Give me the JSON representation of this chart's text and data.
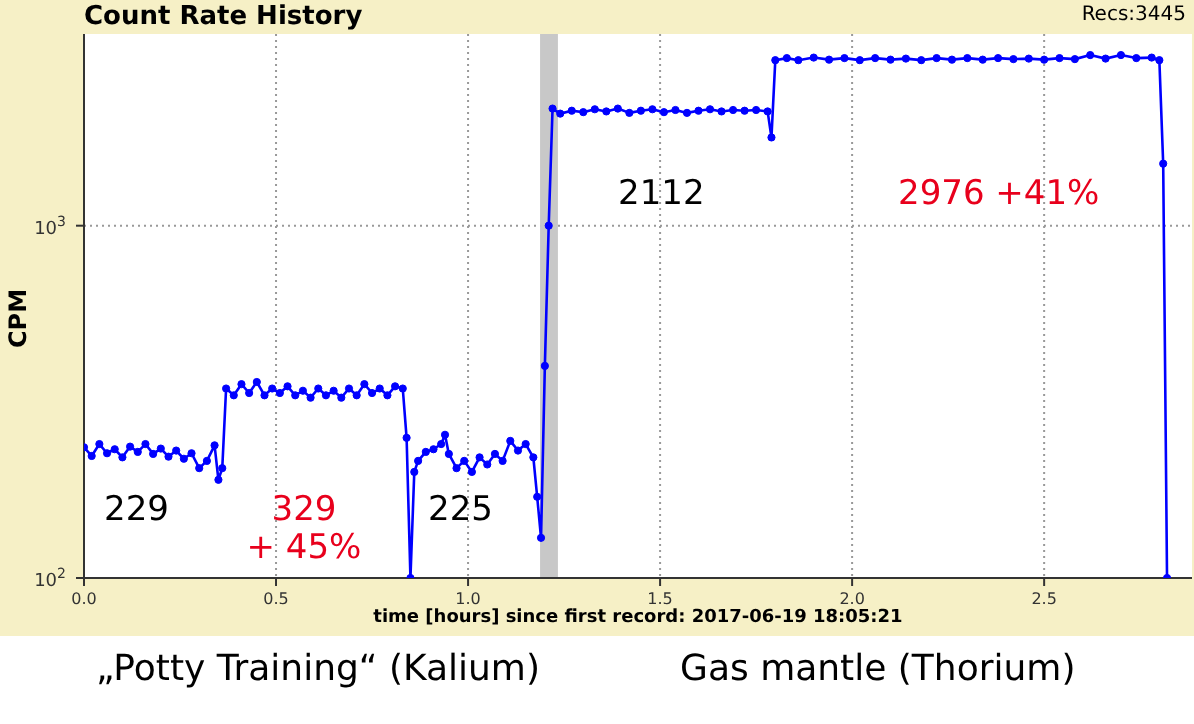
{
  "chart_data": {
    "type": "line",
    "title": "Count Rate History",
    "xlabel": "time [hours] since first record: 2017-06-19 18:05:21",
    "ylabel": "CPM",
    "annotations": [
      "Recs:3445",
      "229",
      "329\n+ 45%",
      "225",
      "2112",
      "2976 +41%",
      "„Potty Training“ (Kalium)",
      "Gas mantle (Thorium)"
    ],
    "log": "y",
    "grid": true,
    "marker": "circle",
    "line_style": "solid",
    "xlim": [
      0,
      2.885
    ],
    "xticks": [
      {
        "value": 0,
        "label": "0.0"
      },
      0.5,
      {
        "value": 1,
        "label": "1.0"
      },
      1.5,
      {
        "value": 2,
        "label": "2.0"
      },
      2.5
    ],
    "ylim": [
      100,
      3500
    ],
    "yticks": [
      {
        "value": 100,
        "label": "10$^{2}$"
      },
      {
        "value": 1000,
        "label": "10$^{3}$"
      }
    ],
    "bands": [
      {
        "axis": "x",
        "from": 1.1875,
        "to": 1.234,
        "color": "#c8c8c8"
      }
    ],
    "series": [
      {
        "color": "#0000ff",
        "x": [
          0,
          0.02,
          0.04,
          0.06,
          0.08,
          0.1,
          0.12,
          0.14,
          0.16,
          0.18,
          0.2,
          0.22,
          0.24,
          0.26,
          0.28,
          0.3,
          0.32,
          0.34,
          0.35,
          0.36,
          0.37,
          0.39,
          0.41,
          0.43,
          0.45,
          0.47,
          0.49,
          0.51,
          0.53,
          0.55,
          0.57,
          0.59,
          0.61,
          0.63,
          0.65,
          0.67,
          0.69,
          0.71,
          0.73,
          0.75,
          0.77,
          0.79,
          0.81,
          0.83,
          0.84,
          0.85,
          0.86,
          0.87,
          0.89,
          0.91,
          0.93,
          0.94,
          0.95,
          0.97,
          0.99,
          1.01,
          1.03,
          1.05,
          1.07,
          1.09,
          1.11,
          1.13,
          1.15,
          1.17,
          1.18,
          1.19,
          1.2,
          1.21,
          1.22,
          1.24,
          1.27,
          1.3,
          1.33,
          1.36,
          1.39,
          1.42,
          1.45,
          1.48,
          1.51,
          1.54,
          1.57,
          1.6,
          1.63,
          1.66,
          1.69,
          1.72,
          1.75,
          1.78,
          1.79,
          1.8,
          1.83,
          1.86,
          1.9,
          1.94,
          1.98,
          2.02,
          2.06,
          2.1,
          2.14,
          2.18,
          2.22,
          2.26,
          2.3,
          2.34,
          2.38,
          2.42,
          2.46,
          2.5,
          2.54,
          2.58,
          2.62,
          2.66,
          2.7,
          2.74,
          2.78,
          2.8,
          2.81,
          2.82
        ],
        "values": [
          235,
          222,
          240,
          226,
          232,
          220,
          236,
          228,
          240,
          225,
          233,
          221,
          230,
          218,
          226,
          205,
          215,
          238,
          190,
          205,
          345,
          330,
          355,
          335,
          360,
          330,
          345,
          335,
          350,
          330,
          340,
          325,
          345,
          330,
          340,
          325,
          345,
          330,
          355,
          335,
          345,
          330,
          350,
          345,
          250,
          100,
          200,
          215,
          228,
          232,
          240,
          255,
          225,
          205,
          215,
          200,
          220,
          210,
          225,
          215,
          245,
          230,
          240,
          220,
          170,
          130,
          400,
          1000,
          2150,
          2080,
          2120,
          2100,
          2140,
          2110,
          2150,
          2090,
          2120,
          2140,
          2100,
          2130,
          2090,
          2120,
          2140,
          2110,
          2130,
          2120,
          2130,
          2110,
          1780,
          2950,
          2990,
          2950,
          3000,
          2960,
          2990,
          2950,
          2990,
          2960,
          2980,
          2950,
          2990,
          2960,
          2990,
          2960,
          2990,
          2970,
          2980,
          2960,
          2990,
          2970,
          3050,
          2980,
          3050,
          2990,
          3000,
          2950,
          1500,
          100
        ]
      }
    ]
  }
}
